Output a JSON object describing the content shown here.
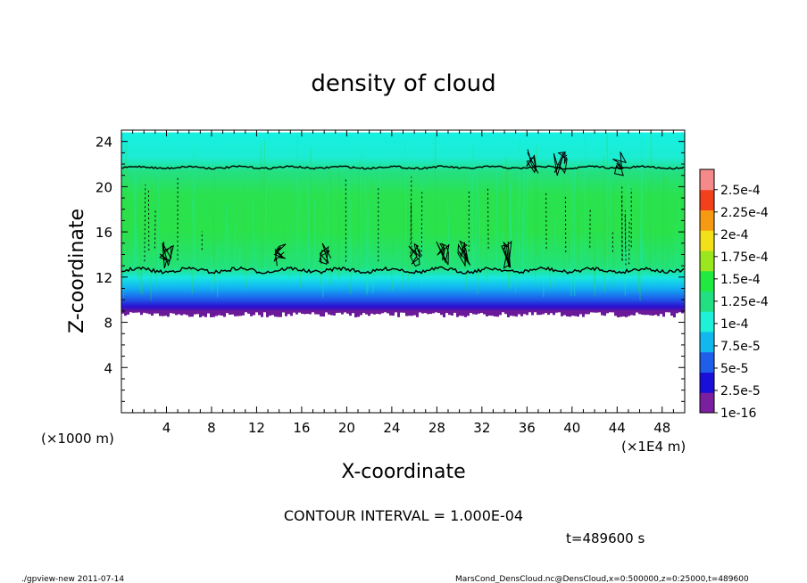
{
  "chart_data": {
    "type": "heatmap",
    "title": "density of cloud",
    "xlabel": "X-coordinate",
    "ylabel": "Z-coordinate",
    "x_unit_left": "(×1000 m)",
    "x_unit_right": "(×1E4 m)",
    "xlim": [
      0,
      50
    ],
    "ylim": [
      0,
      25
    ],
    "x_ticks": [
      4,
      8,
      12,
      16,
      20,
      24,
      28,
      32,
      36,
      40,
      44,
      48
    ],
    "y_ticks": [
      4,
      8,
      12,
      16,
      20,
      24
    ],
    "colorbar": {
      "labels": [
        "1e-16",
        "2.5e-5",
        "5e-5",
        "7.5e-5",
        "1e-4",
        "1.25e-4",
        "1.5e-4",
        "1.75e-4",
        "2e-4",
        "2.25e-4",
        "2.5e-4"
      ],
      "colors": [
        "#7a1fa0",
        "#1a0fd8",
        "#1f5ee8",
        "#12b7f0",
        "#1ff0d8",
        "#22e082",
        "#22e842",
        "#9ae61f",
        "#f2e01a",
        "#f59a12",
        "#f2401a",
        "#f58a8a"
      ]
    },
    "cloud_layer": {
      "z_bottom": 8.9,
      "z_top": 24.8,
      "contour_lines_z": [
        12.6,
        21.7
      ]
    },
    "contour_interval": "CONTOUR INTERVAL = 1.000E-04",
    "time_label": "t=489600 s"
  },
  "footer": {
    "left": "./gpview-new  2011-07-14",
    "right": "MarsCond_DensCloud.nc@DensCloud,x=0:500000,z=0:25000,t=489600"
  }
}
